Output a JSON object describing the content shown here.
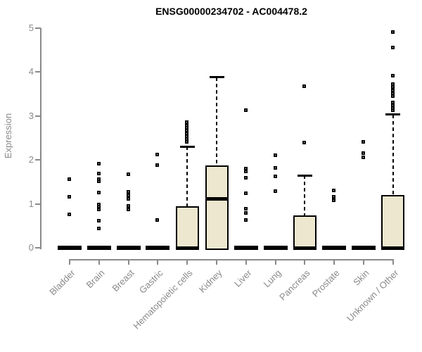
{
  "chart_data": {
    "type": "box",
    "title": "ENSG00000234702 - AC004478.2",
    "ylabel": "Expression",
    "xlabel": "",
    "ylim": [
      0,
      5
    ],
    "yticks": [
      0,
      1,
      2,
      3,
      4,
      5
    ],
    "grid": false,
    "legend": "none",
    "categories": [
      "Bladder",
      "Brain",
      "Breast",
      "Gastric",
      "Hematopoietic cells",
      "Kidney",
      "Liver",
      "Lung",
      "Pancreas",
      "Prostate",
      "Skin",
      "Unknown / Other"
    ],
    "boxes": [
      {
        "category": "Bladder",
        "q1": 0,
        "median": 0,
        "q3": 0,
        "whisker_low": 0,
        "whisker_high": 0,
        "outliers": [
          0.75,
          1.15,
          1.55
        ]
      },
      {
        "category": "Brain",
        "q1": 0,
        "median": 0,
        "q3": 0,
        "whisker_low": 0,
        "whisker_high": 0,
        "outliers": [
          0.43,
          0.61,
          0.86,
          0.93,
          0.98,
          1.25,
          1.51,
          1.55,
          1.68,
          1.91
        ]
      },
      {
        "category": "Breast",
        "q1": 0,
        "median": 0,
        "q3": 0,
        "whisker_low": 0,
        "whisker_high": 0,
        "outliers": [
          0.86,
          0.95,
          1.1,
          1.18,
          1.27,
          1.67
        ]
      },
      {
        "category": "Gastric",
        "q1": 0,
        "median": 0,
        "q3": 0,
        "whisker_low": 0,
        "whisker_high": 0,
        "outliers": [
          0.63,
          1.88,
          2.12
        ]
      },
      {
        "category": "Hematopoietic cells",
        "q1": 0,
        "median": 0,
        "q3": 0.95,
        "whisker_low": 0,
        "whisker_high": 2.3,
        "outliers": [
          2.41,
          2.47,
          2.54,
          2.6,
          2.66,
          2.72,
          2.78,
          2.85
        ]
      },
      {
        "category": "Kidney",
        "q1": 0,
        "median": 1.12,
        "q3": 1.87,
        "whisker_low": 0,
        "whisker_high": 3.88,
        "outliers": []
      },
      {
        "category": "Liver",
        "q1": 0,
        "median": 0,
        "q3": 0,
        "whisker_low": 0,
        "whisker_high": 0,
        "outliers": [
          0.63,
          0.79,
          0.88,
          1.23,
          1.59,
          1.73,
          1.8,
          3.13
        ]
      },
      {
        "category": "Lung",
        "q1": 0,
        "median": 0,
        "q3": 0,
        "whisker_low": 0,
        "whisker_high": 0,
        "outliers": [
          1.28,
          1.62,
          1.81,
          2.1
        ]
      },
      {
        "category": "Pancreas",
        "q1": 0,
        "median": 0,
        "q3": 0.74,
        "whisker_low": 0,
        "whisker_high": 1.65,
        "outliers": [
          2.39,
          3.67
        ]
      },
      {
        "category": "Prostate",
        "q1": 0,
        "median": 0,
        "q3": 0,
        "whisker_low": 0,
        "whisker_high": 0,
        "outliers": [
          1.07,
          1.15,
          1.3
        ]
      },
      {
        "category": "Skin",
        "q1": 0,
        "median": 0,
        "q3": 0,
        "whisker_low": 0,
        "whisker_high": 0,
        "outliers": [
          2.05,
          2.15,
          2.4
        ]
      },
      {
        "category": "Unknown / Other",
        "q1": 0,
        "median": 0,
        "q3": 1.2,
        "whisker_low": 0,
        "whisker_high": 3.03,
        "outliers": [
          3.12,
          3.18,
          3.24,
          3.3,
          3.45,
          3.51,
          3.58,
          3.65,
          3.72,
          3.91,
          4.55,
          4.9
        ]
      }
    ],
    "colors": {
      "box_fill": "#ECE7CE",
      "box_border": "#000000",
      "axis": "#8a8a8a",
      "label": "#8a8a8a",
      "title": "#000000",
      "background": "#ffffff"
    }
  }
}
